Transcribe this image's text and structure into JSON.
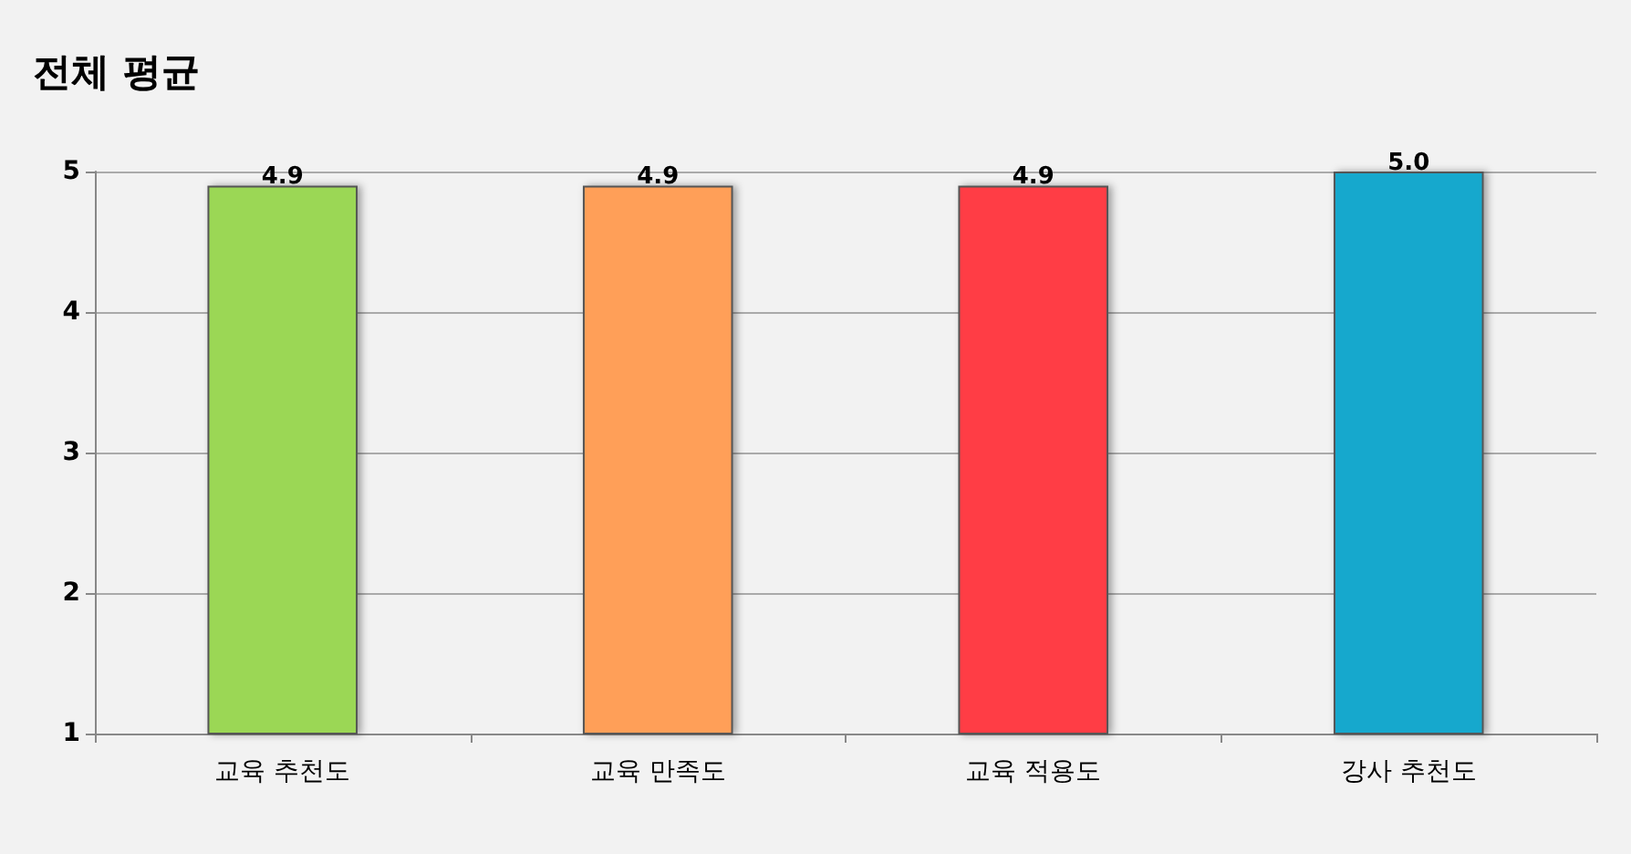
{
  "chart_data": {
    "type": "bar",
    "title": "전체 평균",
    "categories": [
      "교육 추천도",
      "교육 만족도",
      "교육 적용도",
      "강사 추천도"
    ],
    "values": [
      4.9,
      4.9,
      4.9,
      5
    ],
    "colors": [
      "#9bd755",
      "#ff9f58",
      "#ff3c45",
      "#17a8cd"
    ],
    "value_labels": [
      "4.9",
      "4.9",
      "4.9",
      "5.0"
    ],
    "ylim": [
      1,
      5
    ],
    "yticks": [
      1,
      2,
      3,
      4,
      5
    ],
    "grid": "y"
  }
}
